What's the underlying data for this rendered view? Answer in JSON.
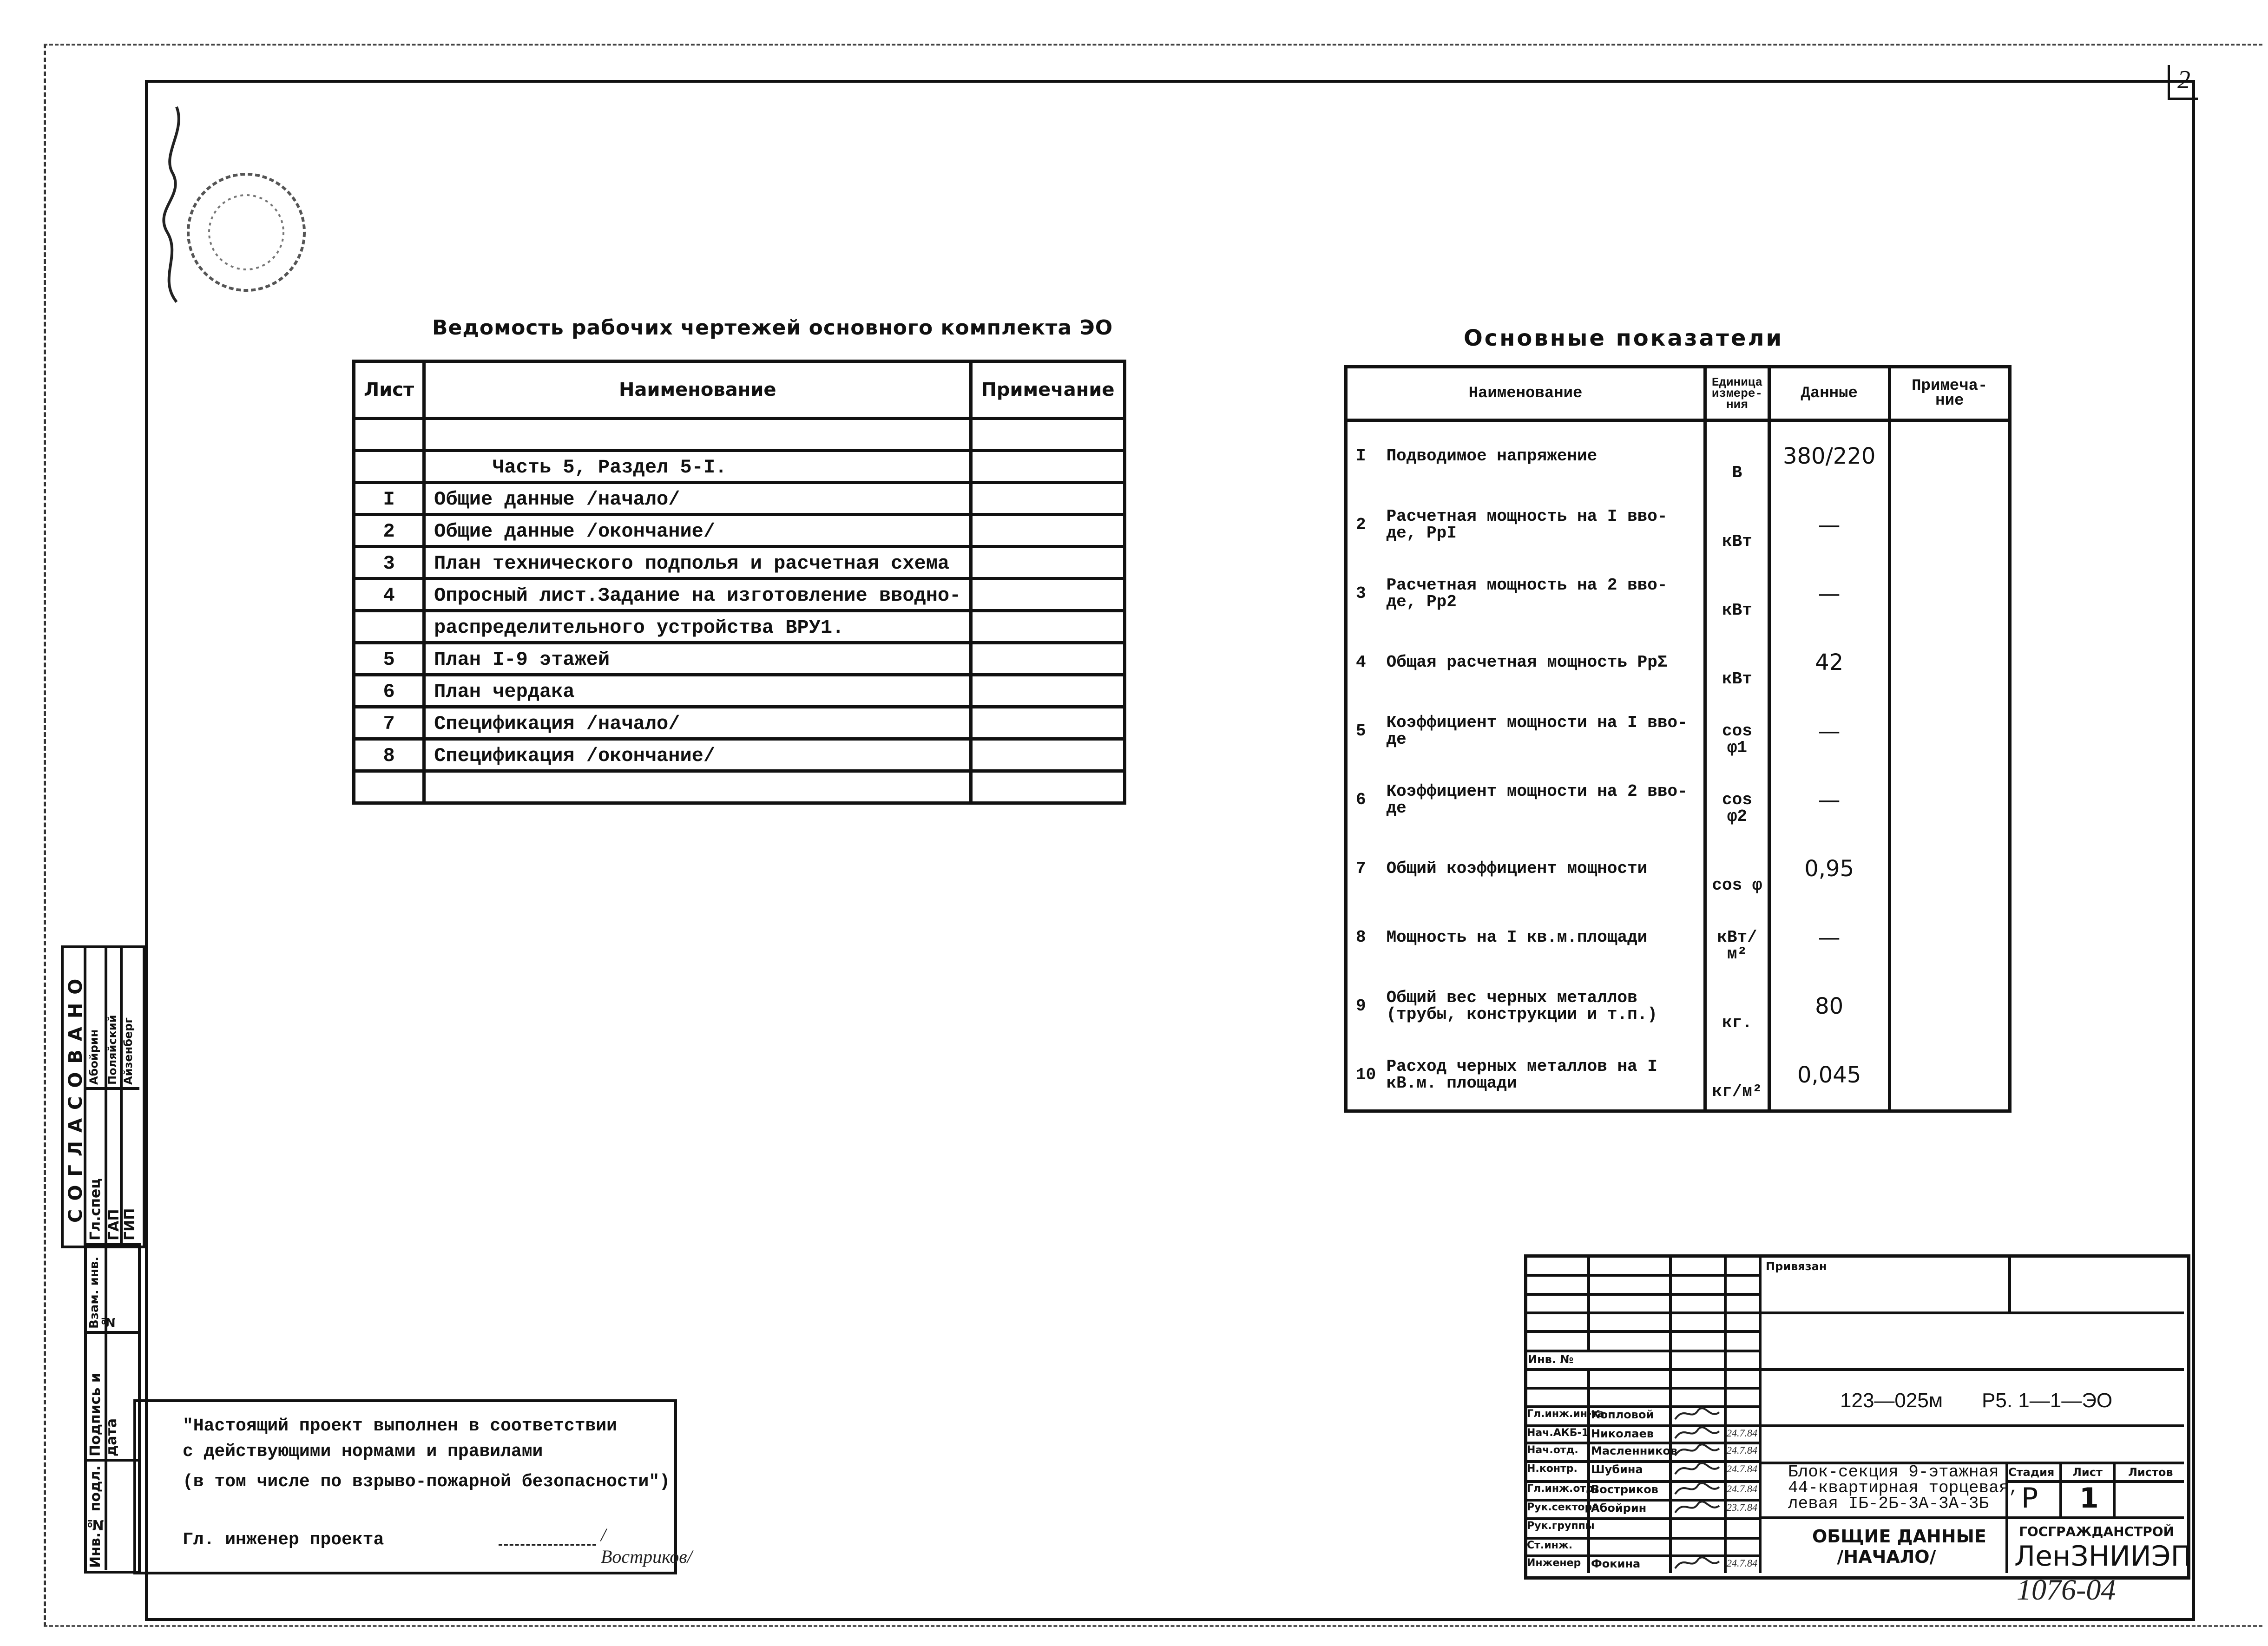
{
  "sheet_corner_number": "2",
  "left_table": {
    "title": "Ведомость рабочих чертежей основного комплекта ЭО",
    "headers": [
      "Лист",
      "Наименование",
      "Примечание"
    ],
    "rows": [
      {
        "sheet": "",
        "name": ""
      },
      {
        "sheet": "",
        "name": "     Часть 5, Раздел 5-I."
      },
      {
        "sheet": "I",
        "name": "Общие данные /начало/"
      },
      {
        "sheet": "2",
        "name": "Общие данные /окончание/"
      },
      {
        "sheet": "3",
        "name": "План технического подполья и расчетная схема"
      },
      {
        "sheet": "4",
        "name": "Опросный лист.Задание на изготовление вводно-"
      },
      {
        "sheet": "",
        "name": "распределительного устройства ВРУ1."
      },
      {
        "sheet": "5",
        "name": "План I-9 этажей"
      },
      {
        "sheet": "6",
        "name": "План чердака"
      },
      {
        "sheet": "7",
        "name": "Спецификация /начало/"
      },
      {
        "sheet": "8",
        "name": "Спецификация /окончание/"
      },
      {
        "sheet": "",
        "name": ""
      }
    ]
  },
  "right_table": {
    "title": "Основные показатели",
    "headers": [
      "Наименование",
      "Единица измере-ния",
      "Данные",
      "Примеча-ние"
    ],
    "rows": [
      {
        "num": "I",
        "name": "Подводимое напряжение",
        "unit": "В",
        "value": "380/220"
      },
      {
        "num": "2",
        "name": "Расчетная мощность на I вво-де, PpI",
        "unit": "кВт",
        "value": "—"
      },
      {
        "num": "3",
        "name": "Расчетная мощность на 2 вво-де, Pp2",
        "unit": "кВт",
        "value": "—"
      },
      {
        "num": "4",
        "name": "Общая расчетная мощность PpΣ",
        "unit": "кВт",
        "value": "42"
      },
      {
        "num": "5",
        "name": "Коэффициент мощности на I вво-де",
        "unit": "cos φ1",
        "value": "—"
      },
      {
        "num": "6",
        "name": "Коэффициент мощности на 2 вво-де",
        "unit": "cos φ2",
        "value": "—"
      },
      {
        "num": "7",
        "name": "Общий коэффициент мощности",
        "unit": "cos φ",
        "value": "0,95"
      },
      {
        "num": "8",
        "name": "Мощность на I кв.м.площади",
        "unit": "кВт/м²",
        "value": "—"
      },
      {
        "num": "9",
        "name": "Общий вес черных металлов (трубы, конструкции и т.п.)",
        "unit": "кг.",
        "value": "80"
      },
      {
        "num": "10",
        "name": "Расход черных металлов на I кВ.м. площади",
        "unit": "кг/м²",
        "value": "0,045"
      }
    ]
  },
  "agreed": {
    "label": "СОГЛАСОВАНО",
    "roles": [
      "Гл.спец",
      "ГАП",
      "ГИП"
    ],
    "names": [
      "Абойрин",
      "Поляйский",
      "Айзенберг"
    ]
  },
  "side_stack": [
    "Взам. инв.№",
    "Подпись и дата",
    "Инв.№ подл."
  ],
  "note": {
    "line1": "\"Настоящий проект выполнен в соответствии",
    "line2": "с действующими нормами и правилами",
    "line3": "(в том числе по взрыво-пожарной безопасности\")",
    "signer_label": "Гл. инженер проекта",
    "signer_name": "/Востриков/"
  },
  "title_block": {
    "bound_label": "Привязан",
    "inv_label": "Инв. №",
    "project_code": "123—025м",
    "doc_code": "Р5. 1—1—ЭО",
    "signatures": [
      {
        "role": "Гл.инж.ин-та",
        "name": "Копловой",
        "date": ""
      },
      {
        "role": "Нач.АКБ-1",
        "name": "Николаев",
        "date": "24.7.84"
      },
      {
        "role": "Нач.отд.",
        "name": "Масленников",
        "date": "24.7.84"
      },
      {
        "role": "Н.контр.",
        "name": "Шубина",
        "date": "24.7.84"
      },
      {
        "role": "Гл.инж.отд.",
        "name": "Востриков",
        "date": "24.7.84"
      },
      {
        "role": "Рук.сектора",
        "name": "Абойрин",
        "date": "23.7.84"
      },
      {
        "role": "Рук.группы",
        "name": "",
        "date": ""
      },
      {
        "role": "Ст.инж.",
        "name": "",
        "date": ""
      },
      {
        "role": "Инженер",
        "name": "Фокина",
        "date": "24.7.84"
      }
    ],
    "object_line1": "Блок-секция 9-этажная",
    "object_line2": "44-квартирная торцевая,",
    "object_line3": "левая IБ-2Б-3А-3А-3Б",
    "stage_label": "Стадия",
    "sheet_label": "Лист",
    "sheets_label": "Листов",
    "stage": "Р",
    "sheet": "1",
    "sheets": "",
    "sheet_title1": "ОБЩИЕ ДАННЫЕ",
    "sheet_title2": "/НАЧАЛО/",
    "org_top": "ГОСГРАЖДАНСТРОЙ",
    "org": "ЛенЗНИИЭП"
  },
  "archive_number": "1076-04"
}
